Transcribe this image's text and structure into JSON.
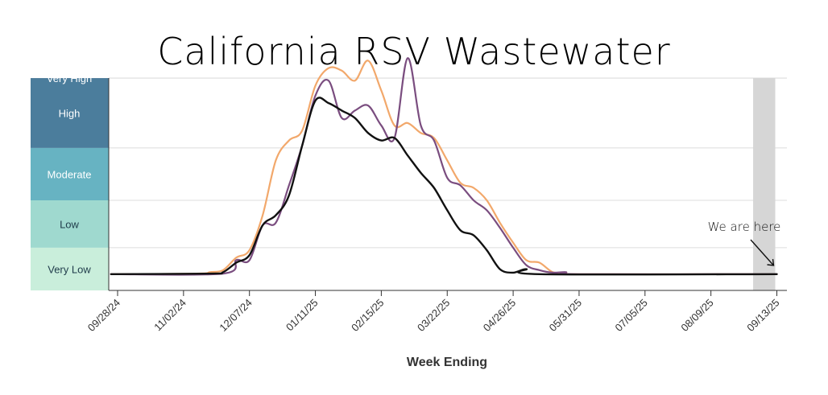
{
  "chart_data": {
    "type": "line",
    "title": "California RSV Wastewater",
    "xlabel": "Week Ending",
    "ylabel": "",
    "ylim": [
      0,
      5
    ],
    "x_tick_labels": [
      "09/28/24",
      "11/02/24",
      "12/07/24",
      "01/11/25",
      "02/15/25",
      "03/22/25",
      "04/26/25",
      "05/31/25",
      "07/05/25",
      "08/09/25",
      "09/13/25"
    ],
    "x_range_weeks": [
      0,
      50
    ],
    "levels": [
      {
        "label": "Very Low",
        "from": 0.0,
        "to": 0.55,
        "color": "#c9eedb"
      },
      {
        "label": "Low",
        "from": 0.55,
        "to": 1.5,
        "color": "#9fd9cf"
      },
      {
        "label": "Moderate",
        "from": 1.5,
        "to": 2.55,
        "color": "#67b3c2"
      },
      {
        "label": "High",
        "from": 2.55,
        "to": 3.95,
        "color": "#4b7d9c"
      },
      {
        "label": "Very High",
        "from": 3.95,
        "to": 4.6,
        "color": "#3a4e7a"
      }
    ],
    "series": [
      {
        "name": "orange",
        "color": "#f2a86b",
        "points": [
          [
            -0.5,
            0.02
          ],
          [
            6,
            0.03
          ],
          [
            7,
            0.06
          ],
          [
            8,
            0.1
          ],
          [
            9,
            0.35
          ],
          [
            10,
            0.5
          ],
          [
            11,
            1.2
          ],
          [
            12,
            2.3
          ],
          [
            13,
            2.7
          ],
          [
            14,
            2.9
          ],
          [
            15,
            3.8
          ],
          [
            16,
            4.15
          ],
          [
            17,
            4.1
          ],
          [
            18,
            3.9
          ],
          [
            19,
            4.3
          ],
          [
            20,
            3.7
          ],
          [
            21,
            3.0
          ],
          [
            22,
            3.05
          ],
          [
            23,
            2.85
          ],
          [
            24,
            2.75
          ],
          [
            25,
            2.3
          ],
          [
            26,
            1.85
          ],
          [
            27,
            1.75
          ],
          [
            28,
            1.5
          ],
          [
            29,
            1.05
          ],
          [
            30,
            0.65
          ],
          [
            31,
            0.3
          ],
          [
            32,
            0.25
          ],
          [
            33,
            0.06
          ],
          [
            34,
            0.05
          ],
          [
            35,
            0.02
          ],
          [
            50,
            0.02
          ]
        ]
      },
      {
        "name": "purple",
        "color": "#7a4d7f",
        "points": [
          [
            -0.5,
            0.02
          ],
          [
            8,
            0.03
          ],
          [
            9,
            0.3
          ],
          [
            10,
            0.3
          ],
          [
            11,
            1.0
          ],
          [
            12,
            1.05
          ],
          [
            13,
            1.8
          ],
          [
            14,
            2.6
          ],
          [
            15,
            3.6
          ],
          [
            16,
            3.9
          ],
          [
            17,
            3.15
          ],
          [
            18,
            3.3
          ],
          [
            19,
            3.4
          ],
          [
            20,
            3.0
          ],
          [
            21,
            2.75
          ],
          [
            22,
            4.35
          ],
          [
            23,
            3.0
          ],
          [
            24,
            2.7
          ],
          [
            25,
            1.95
          ],
          [
            26,
            1.8
          ],
          [
            27,
            1.5
          ],
          [
            28,
            1.3
          ],
          [
            29,
            0.95
          ],
          [
            30,
            0.55
          ],
          [
            31,
            0.2
          ],
          [
            32,
            0.1
          ],
          [
            33,
            0.05
          ],
          [
            34,
            0.06
          ],
          [
            35,
            0.02
          ],
          [
            50,
            0.02
          ]
        ]
      },
      {
        "name": "black",
        "color": "#111111",
        "points": [
          [
            -0.5,
            0.02
          ],
          [
            7,
            0.03
          ],
          [
            8,
            0.06
          ],
          [
            9,
            0.25
          ],
          [
            10,
            0.4
          ],
          [
            11,
            1.0
          ],
          [
            12,
            1.2
          ],
          [
            13,
            1.6
          ],
          [
            14,
            2.6
          ],
          [
            15,
            3.5
          ],
          [
            16,
            3.45
          ],
          [
            17,
            3.3
          ],
          [
            18,
            3.15
          ],
          [
            19,
            2.85
          ],
          [
            20,
            2.7
          ],
          [
            21,
            2.75
          ],
          [
            22,
            2.4
          ],
          [
            23,
            2.05
          ],
          [
            24,
            1.75
          ],
          [
            25,
            1.3
          ],
          [
            26,
            0.9
          ],
          [
            27,
            0.8
          ],
          [
            28,
            0.5
          ],
          [
            29,
            0.12
          ],
          [
            30,
            0.05
          ],
          [
            31,
            0.12
          ],
          [
            32,
            0.02
          ],
          [
            50,
            0.02
          ]
        ]
      }
    ],
    "highlight_weeks": [
      48.2,
      50
    ],
    "annotation": {
      "text": "We are here",
      "at_week": 50
    }
  }
}
